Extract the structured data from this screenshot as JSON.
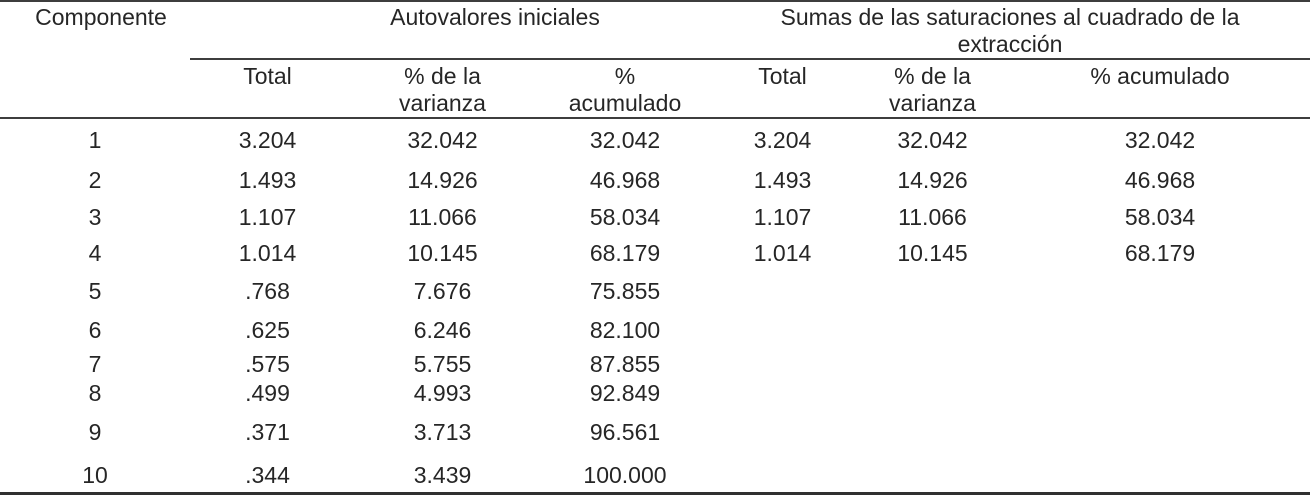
{
  "colors": {
    "text": "#262626",
    "rule": "#3d3d3d",
    "bottom_rule": "#303030",
    "background": "#ffffff"
  },
  "header": {
    "component": "Componente",
    "groups": [
      {
        "label": "Autovalores iniciales",
        "subcolumns": [
          "Total",
          "% de la\nvarianza",
          "%\nacumulado"
        ]
      },
      {
        "label": "Sumas de las saturaciones al cuadrado de la\nextracción",
        "subcolumns": [
          "Total",
          "% de la\nvarianza",
          "% acumulado"
        ]
      }
    ]
  },
  "rows": [
    {
      "component": "1",
      "initial_total": "3.204",
      "initial_pct_variance": "32.042",
      "initial_pct_cumulative": "32.042",
      "extraction_total": "3.204",
      "extraction_pct_variance": "32.042",
      "extraction_pct_cumulative": "32.042"
    },
    {
      "component": "2",
      "initial_total": "1.493",
      "initial_pct_variance": "14.926",
      "initial_pct_cumulative": "46.968",
      "extraction_total": "1.493",
      "extraction_pct_variance": "14.926",
      "extraction_pct_cumulative": "46.968"
    },
    {
      "component": "3",
      "initial_total": "1.107",
      "initial_pct_variance": "11.066",
      "initial_pct_cumulative": "58.034",
      "extraction_total": "1.107",
      "extraction_pct_variance": "11.066",
      "extraction_pct_cumulative": "58.034"
    },
    {
      "component": "4",
      "initial_total": "1.014",
      "initial_pct_variance": "10.145",
      "initial_pct_cumulative": "68.179",
      "extraction_total": "1.014",
      "extraction_pct_variance": "10.145",
      "extraction_pct_cumulative": "68.179"
    },
    {
      "component": "5",
      "initial_total": ".768",
      "initial_pct_variance": "7.676",
      "initial_pct_cumulative": "75.855",
      "extraction_total": "",
      "extraction_pct_variance": "",
      "extraction_pct_cumulative": ""
    },
    {
      "component": "6",
      "initial_total": ".625",
      "initial_pct_variance": "6.246",
      "initial_pct_cumulative": "82.100",
      "extraction_total": "",
      "extraction_pct_variance": "",
      "extraction_pct_cumulative": ""
    },
    {
      "component": "7",
      "initial_total": ".575",
      "initial_pct_variance": "5.755",
      "initial_pct_cumulative": "87.855",
      "extraction_total": "",
      "extraction_pct_variance": "",
      "extraction_pct_cumulative": ""
    },
    {
      "component": "8",
      "initial_total": ".499",
      "initial_pct_variance": "4.993",
      "initial_pct_cumulative": "92.849",
      "extraction_total": "",
      "extraction_pct_variance": "",
      "extraction_pct_cumulative": ""
    },
    {
      "component": "9",
      "initial_total": ".371",
      "initial_pct_variance": "3.713",
      "initial_pct_cumulative": "96.561",
      "extraction_total": "",
      "extraction_pct_variance": "",
      "extraction_pct_cumulative": ""
    },
    {
      "component": "10",
      "initial_total": ".344",
      "initial_pct_variance": "3.439",
      "initial_pct_cumulative": "100.000",
      "extraction_total": "",
      "extraction_pct_variance": "",
      "extraction_pct_cumulative": ""
    }
  ]
}
